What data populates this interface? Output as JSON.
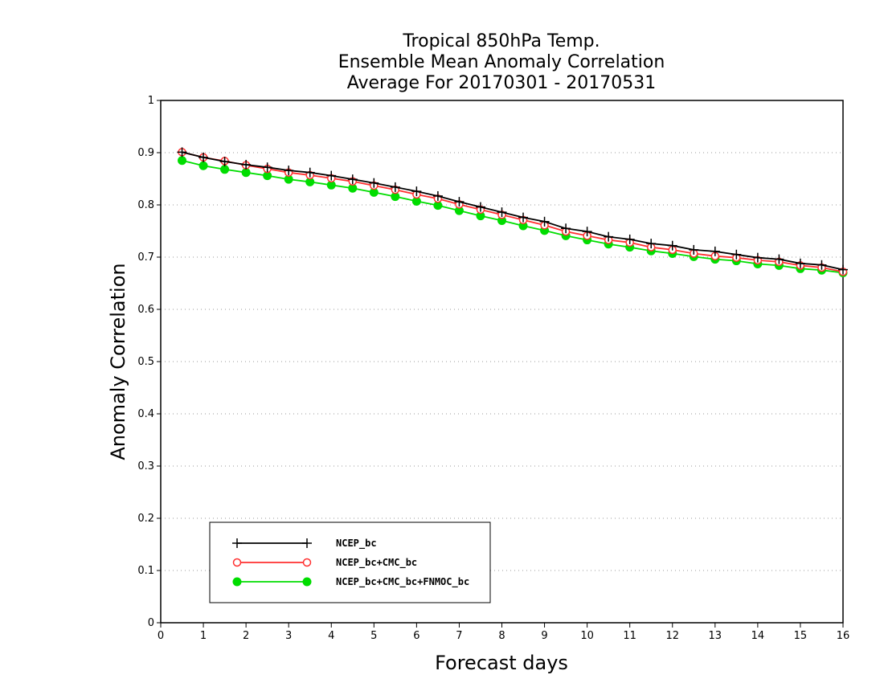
{
  "chart_data": {
    "type": "line",
    "title": [
      "Tropical 850hPa Temp.",
      "Ensemble Mean Anomaly Correlation",
      "Average For 20170301 - 20170531"
    ],
    "xlabel": "Forecast days",
    "ylabel": "Anomaly Correlation",
    "xlim": [
      0,
      16
    ],
    "ylim": [
      0,
      1
    ],
    "xticks": [
      "0",
      "1",
      "2",
      "3",
      "4",
      "5",
      "6",
      "7",
      "8",
      "9",
      "10",
      "11",
      "12",
      "13",
      "14",
      "15",
      "16"
    ],
    "yticks": [
      "0",
      "0.1",
      "0.2",
      "0.3",
      "0.4",
      "0.5",
      "0.6",
      "0.7",
      "0.8",
      "0.9",
      "1"
    ],
    "grid": "horizontal dotted",
    "legend_position": "bottom-left",
    "x": [
      0.5,
      1,
      1.5,
      2,
      2.5,
      3,
      3.5,
      4,
      4.5,
      5,
      5.5,
      6,
      6.5,
      7,
      7.5,
      8,
      8.5,
      9,
      9.5,
      10,
      10.5,
      11,
      11.5,
      12,
      12.5,
      13,
      13.5,
      14,
      14.5,
      15,
      15.5,
      16
    ],
    "series": [
      {
        "name": "NCEP_bc",
        "color": "#000000",
        "marker": "plus",
        "values": [
          0.901,
          0.891,
          0.883,
          0.877,
          0.872,
          0.866,
          0.862,
          0.856,
          0.849,
          0.842,
          0.834,
          0.826,
          0.817,
          0.806,
          0.796,
          0.786,
          0.776,
          0.768,
          0.755,
          0.749,
          0.739,
          0.734,
          0.726,
          0.722,
          0.714,
          0.711,
          0.705,
          0.699,
          0.696,
          0.688,
          0.685,
          0.676
        ]
      },
      {
        "name": "NCEP_bc+CMC_bc",
        "color": "#ff3030",
        "marker": "open-circle",
        "values": [
          0.901,
          0.891,
          0.884,
          0.876,
          0.869,
          0.862,
          0.857,
          0.851,
          0.845,
          0.837,
          0.829,
          0.82,
          0.812,
          0.801,
          0.791,
          0.781,
          0.771,
          0.761,
          0.749,
          0.741,
          0.733,
          0.728,
          0.719,
          0.714,
          0.707,
          0.702,
          0.699,
          0.694,
          0.691,
          0.684,
          0.68,
          0.672
        ]
      },
      {
        "name": "NCEP_bc+CMC_bc+FNMOC_bc",
        "color": "#00dd00",
        "marker": "filled-circle",
        "values": [
          0.885,
          0.875,
          0.868,
          0.862,
          0.856,
          0.849,
          0.844,
          0.838,
          0.832,
          0.824,
          0.816,
          0.807,
          0.799,
          0.789,
          0.779,
          0.77,
          0.76,
          0.751,
          0.741,
          0.733,
          0.725,
          0.719,
          0.712,
          0.707,
          0.701,
          0.696,
          0.693,
          0.687,
          0.684,
          0.678,
          0.675,
          0.67
        ]
      }
    ]
  }
}
